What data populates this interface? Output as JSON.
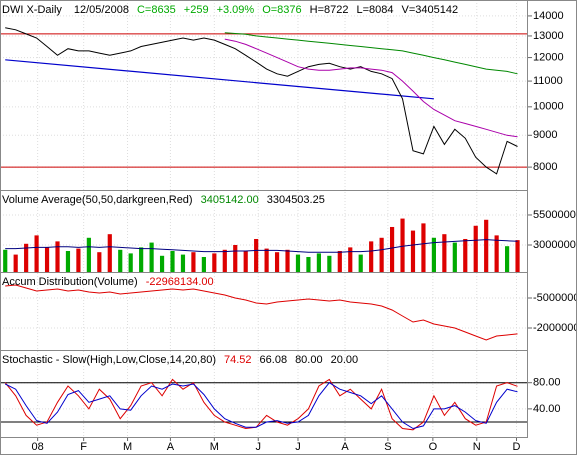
{
  "chart_data": [
    {
      "type": "line",
      "title": "DWI X-Daily",
      "log": true,
      "header": [
        {
          "text": "12/05/2008",
          "color": "#000000"
        },
        {
          "text": "C=8635",
          "color": "#00aa00"
        },
        {
          "text": "+259",
          "color": "#00aa00"
        },
        {
          "text": "+3.09%",
          "color": "#00aa00"
        },
        {
          "text": "O=8376",
          "color": "#00aa00"
        },
        {
          "text": "H=8722",
          "color": "#000000"
        },
        {
          "text": "L=8084",
          "color": "#000000"
        },
        {
          "text": "V=3405142",
          "color": "#000000"
        }
      ],
      "ylim": [
        7350,
        14850
      ],
      "yticks": [
        14000,
        13000,
        12000,
        11000,
        10000,
        9000,
        8000
      ],
      "hlines": [
        {
          "value": 13100,
          "color": "#cc0000"
        },
        {
          "value": 8000,
          "color": "#cc0000"
        }
      ],
      "trendline": {
        "start": [
          0,
          11900
        ],
        "end": [
          41,
          10300
        ],
        "color": "#0000cc"
      },
      "series": [
        {
          "color": "#000000",
          "values": [
            13400,
            13300,
            13100,
            12900,
            12500,
            12100,
            12400,
            12300,
            12300,
            12200,
            12100,
            12200,
            12300,
            12500,
            12600,
            12700,
            12800,
            12900,
            12800,
            12900,
            12800,
            12600,
            12400,
            12100,
            11800,
            11500,
            11300,
            11200,
            11400,
            11600,
            11700,
            11750,
            11600,
            11500,
            11600,
            11400,
            11300,
            11100,
            10300,
            8500,
            8400,
            9300,
            8700,
            9200,
            8900,
            8300,
            8000,
            7800,
            8800,
            8635
          ]
        },
        {
          "color": "#aa00aa",
          "values": [
            null,
            null,
            null,
            null,
            null,
            null,
            null,
            null,
            null,
            null,
            null,
            null,
            null,
            null,
            null,
            null,
            null,
            null,
            null,
            null,
            null,
            12850,
            12750,
            12600,
            12400,
            12200,
            12000,
            11800,
            11600,
            11500,
            11450,
            11450,
            11500,
            11550,
            11550,
            11500,
            11450,
            11350,
            11000,
            10600,
            10200,
            9900,
            9700,
            9500,
            9400,
            9300,
            9200,
            9100,
            9000,
            8950
          ]
        },
        {
          "color": "#008800",
          "values": [
            null,
            null,
            null,
            null,
            null,
            null,
            null,
            null,
            null,
            null,
            null,
            null,
            null,
            null,
            null,
            null,
            null,
            null,
            null,
            null,
            null,
            13150,
            13120,
            13080,
            13000,
            12950,
            12900,
            12850,
            12800,
            12750,
            12700,
            12650,
            12600,
            12550,
            12500,
            12450,
            12400,
            12350,
            12300,
            12200,
            12100,
            12000,
            11900,
            11800,
            11700,
            11600,
            11500,
            11450,
            11400,
            11300
          ]
        }
      ]
    },
    {
      "type": "bar",
      "title": "Volume Average(50,50,darkgreen,Red)",
      "readouts": [
        {
          "text": "3405142.00",
          "color": "#008800"
        },
        {
          "text": "3304503.25",
          "color": "#000000"
        }
      ],
      "ylim": [
        750000,
        7580000
      ],
      "yticks": [
        5500000,
        3000000
      ],
      "series": [
        {
          "style": "bar",
          "up_color": "#00aa00",
          "down_color": "#dd0000",
          "values": [
            2600000,
            2200000,
            3100000,
            3800000,
            2800000,
            3300000,
            2500000,
            2700000,
            3600000,
            2400000,
            3900000,
            2600000,
            2300000,
            2800000,
            3200000,
            2100000,
            2500000,
            2200000,
            2400000,
            2000000,
            2300000,
            2600000,
            3000000,
            2500000,
            3500000,
            2700000,
            2400000,
            2600000,
            2200000,
            2000000,
            2300000,
            2100000,
            2500000,
            2800000,
            2200000,
            3300000,
            3600000,
            4500000,
            5200000,
            4200000,
            4800000,
            3600000,
            3900000,
            3200000,
            3500000,
            4600000,
            5100000,
            3800000,
            2900000,
            3405142
          ]
        },
        {
          "style": "line",
          "color": "#000080",
          "values": [
            2700000,
            2700000,
            2750000,
            2800000,
            2800000,
            2850000,
            2850000,
            2800000,
            2850000,
            2800000,
            2850000,
            2800000,
            2750000,
            2700000,
            2700000,
            2650000,
            2600000,
            2550000,
            2500000,
            2450000,
            2450000,
            2450000,
            2500000,
            2500000,
            2550000,
            2550000,
            2550000,
            2500000,
            2450000,
            2400000,
            2400000,
            2400000,
            2400000,
            2450000,
            2450000,
            2500000,
            2600000,
            2750000,
            2900000,
            3000000,
            3100000,
            3200000,
            3250000,
            3300000,
            3350000,
            3400000,
            3450000,
            3400000,
            3350000,
            3304503.25
          ]
        }
      ]
    },
    {
      "type": "line",
      "title": "Accum Distribution(Volume)",
      "readouts": [
        {
          "text": "-22968134.00",
          "color": "#dd0000"
        }
      ],
      "ylim": [
        -31000000,
        8000000
      ],
      "yticks": [
        -5000000,
        -20000000
      ],
      "series": [
        {
          "color": "#dd0000",
          "values": [
            1000000,
            1500000,
            0,
            -1500000,
            -1000000,
            -500000,
            -1500000,
            -1000000,
            -2000000,
            -2500000,
            -2000000,
            -3000000,
            -2500000,
            -2000000,
            -1500000,
            -1000000,
            -500000,
            -1000000,
            -500000,
            -1500000,
            -2500000,
            -3500000,
            -5000000,
            -6000000,
            -7500000,
            -8000000,
            -7000000,
            -6500000,
            -6000000,
            -5500000,
            -6000000,
            -6500000,
            -6000000,
            -7000000,
            -7500000,
            -8000000,
            -9000000,
            -11000000,
            -14000000,
            -17000000,
            -16000000,
            -18000000,
            -19000000,
            -20000000,
            -22000000,
            -24000000,
            -26000000,
            -24000000,
            -23500000,
            -22968134
          ]
        }
      ]
    },
    {
      "type": "line",
      "title": "Stochastic - Slow(High,Low,Close,14,20,80)",
      "readouts": [
        {
          "text": "74.52",
          "color": "#dd0000"
        },
        {
          "text": "66.08",
          "color": "#000000"
        },
        {
          "text": "80.00",
          "color": "#000000"
        },
        {
          "text": "20.00",
          "color": "#000000"
        }
      ],
      "ylim": [
        -3,
        130
      ],
      "yticks": [
        {
          "value": 80,
          "label": "80.00"
        },
        {
          "value": 40,
          "label": "40.00"
        }
      ],
      "hlines": [
        {
          "value": 80,
          "color": "#000000"
        },
        {
          "value": 20,
          "color": "#000000"
        }
      ],
      "xlim": [
        -0.5,
        50
      ],
      "xticks": [
        {
          "value": 3.1,
          "label": "08"
        },
        {
          "value": 7.5,
          "label": "F"
        },
        {
          "value": 11.7,
          "label": "M"
        },
        {
          "value": 15.8,
          "label": "A"
        },
        {
          "value": 20,
          "label": "M"
        },
        {
          "value": 24.2,
          "label": "J"
        },
        {
          "value": 28,
          "label": "J"
        },
        {
          "value": 32.5,
          "label": "A"
        },
        {
          "value": 36.6,
          "label": "S"
        },
        {
          "value": 40.9,
          "label": "O"
        },
        {
          "value": 45.1,
          "label": "N"
        },
        {
          "value": 48.9,
          "label": "D"
        }
      ],
      "series": [
        {
          "color": "#dd0000",
          "values": [
            80,
            60,
            30,
            15,
            20,
            50,
            75,
            60,
            40,
            70,
            55,
            25,
            45,
            75,
            80,
            60,
            85,
            70,
            80,
            50,
            30,
            20,
            15,
            10,
            12,
            30,
            20,
            15,
            25,
            40,
            75,
            85,
            60,
            70,
            55,
            40,
            70,
            25,
            10,
            8,
            20,
            60,
            30,
            50,
            25,
            15,
            20,
            75,
            80,
            74.52
          ]
        },
        {
          "color": "#0000cc",
          "values": [
            78,
            70,
            45,
            22,
            18,
            35,
            62,
            68,
            50,
            55,
            60,
            40,
            38,
            60,
            75,
            70,
            78,
            75,
            78,
            62,
            40,
            25,
            18,
            12,
            12,
            20,
            22,
            18,
            20,
            30,
            60,
            80,
            70,
            65,
            60,
            48,
            60,
            40,
            20,
            10,
            14,
            40,
            40,
            45,
            35,
            22,
            18,
            50,
            70,
            66.08
          ]
        }
      ]
    }
  ]
}
